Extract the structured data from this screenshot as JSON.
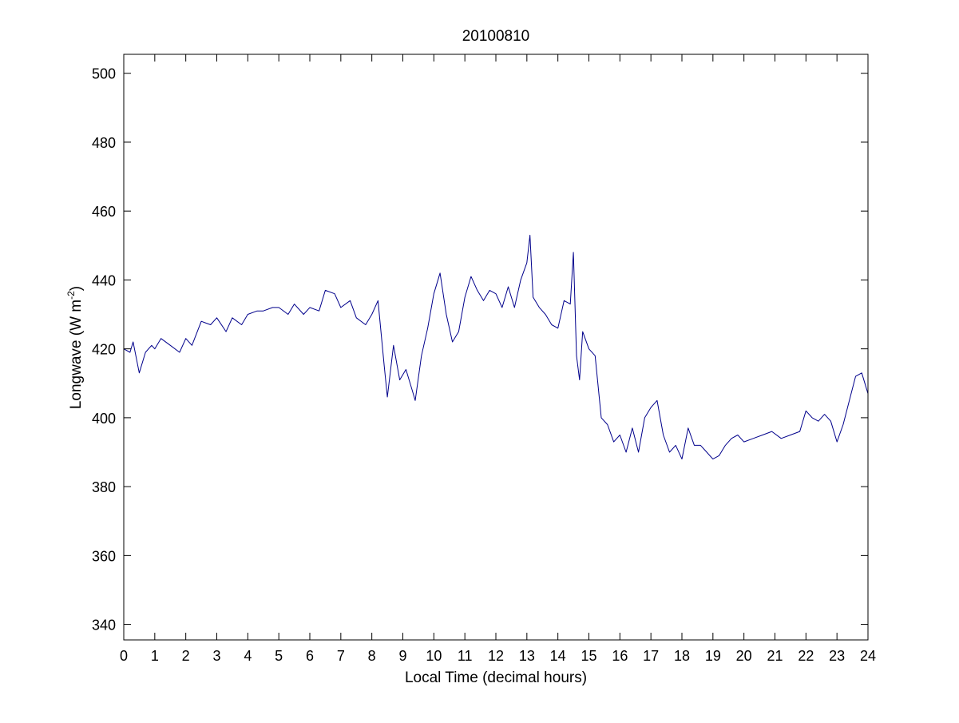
{
  "chart_data": {
    "type": "line",
    "title": "20100810",
    "xlabel": "Local Time (decimal hours)",
    "ylabel_main": "Longwave (W m",
    "ylabel_exp": "-2",
    "ylabel_close": ")",
    "xlim": [
      0,
      24
    ],
    "ylim": [
      335.5,
      505.5
    ],
    "xticks": [
      0,
      1,
      2,
      3,
      4,
      5,
      6,
      7,
      8,
      9,
      10,
      11,
      12,
      13,
      14,
      15,
      16,
      17,
      18,
      19,
      20,
      21,
      22,
      23,
      24
    ],
    "xtick_labels": [
      "0",
      "1",
      "2",
      "3",
      "4",
      "5",
      "6",
      "7",
      "8",
      "9",
      "10",
      "11",
      "12",
      "13",
      "14",
      "15",
      "16",
      "17",
      "18",
      "19",
      "20",
      "21",
      "22",
      "23",
      "24"
    ],
    "yticks": [
      340,
      360,
      380,
      400,
      420,
      440,
      460,
      480,
      500
    ],
    "ytick_labels": [
      "340",
      "360",
      "380",
      "400",
      "420",
      "440",
      "460",
      "480",
      "500"
    ],
    "grid": false,
    "line_color": "#00008b",
    "series": [
      {
        "x": [
          0,
          0.2,
          0.3,
          0.5,
          0.7,
          0.9,
          1.0,
          1.2,
          1.5,
          1.8,
          2.0,
          2.2,
          2.5,
          2.8,
          3.0,
          3.3,
          3.5,
          3.8,
          4.0,
          4.3,
          4.5,
          4.8,
          5.0,
          5.3,
          5.5,
          5.8,
          6.0,
          6.3,
          6.5,
          6.8,
          7.0,
          7.3,
          7.5,
          7.8,
          8.0,
          8.2,
          8.4,
          8.5,
          8.7,
          8.9,
          9.1,
          9.3,
          9.4,
          9.6,
          9.8,
          10.0,
          10.2,
          10.4,
          10.6,
          10.8,
          11.0,
          11.2,
          11.4,
          11.6,
          11.8,
          12.0,
          12.2,
          12.4,
          12.6,
          12.8,
          13.0,
          13.1,
          13.2,
          13.4,
          13.6,
          13.8,
          14.0,
          14.2,
          14.4,
          14.5,
          14.6,
          14.7,
          14.8,
          15.0,
          15.2,
          15.4,
          15.6,
          15.8,
          16.0,
          16.2,
          16.4,
          16.6,
          16.8,
          17.0,
          17.2,
          17.4,
          17.6,
          17.8,
          18.0,
          18.2,
          18.4,
          18.6,
          18.8,
          19.0,
          19.2,
          19.4,
          19.6,
          19.8,
          20.0,
          20.3,
          20.6,
          20.9,
          21.2,
          21.5,
          21.8,
          22.0,
          22.2,
          22.4,
          22.6,
          22.8,
          23.0,
          23.2,
          23.4,
          23.6,
          23.8,
          24.0
        ],
        "y": [
          420,
          419,
          422,
          413,
          419,
          421,
          420,
          423,
          421,
          419,
          423,
          421,
          428,
          427,
          429,
          425,
          429,
          427,
          430,
          431,
          431,
          432,
          432,
          430,
          433,
          430,
          432,
          431,
          437,
          436,
          432,
          434,
          429,
          427,
          430,
          434,
          415,
          406,
          421,
          411,
          414,
          408,
          405,
          418,
          426,
          436,
          442,
          430,
          422,
          425,
          435,
          441,
          437,
          434,
          437,
          436,
          432,
          438,
          432,
          440,
          445,
          453,
          435,
          432,
          430,
          427,
          426,
          434,
          433,
          448,
          418,
          411,
          425,
          420,
          418,
          400,
          398,
          393,
          395,
          390,
          397,
          390,
          400,
          403,
          405,
          395,
          390,
          392,
          388,
          397,
          392,
          392,
          390,
          388,
          389,
          392,
          394,
          395,
          393,
          394,
          395,
          396,
          394,
          395,
          396,
          402,
          400,
          399,
          401,
          399,
          393,
          398,
          405,
          412,
          413,
          407
        ]
      }
    ]
  }
}
